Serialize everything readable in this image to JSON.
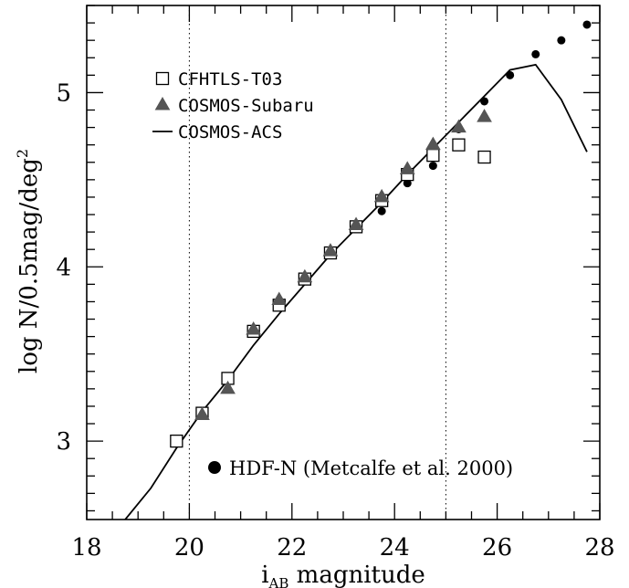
{
  "chart_data": {
    "type": "scatter",
    "xlabel_main": "i",
    "xlabel_sub": "AB",
    "xlabel_rest": " magnitude",
    "ylabel_main": "log N/0.5mag/deg",
    "ylabel_sup": "2",
    "xlim": [
      18,
      28
    ],
    "ylim": [
      2.55,
      5.5
    ],
    "x_ticks": [
      18,
      20,
      22,
      24,
      26,
      28
    ],
    "y_ticks": [
      3,
      4,
      5
    ],
    "vertical_dotted_lines": [
      20,
      25
    ],
    "series": [
      {
        "name": "CFHTLS-T03",
        "marker": "open-square",
        "x": [
          19.75,
          20.25,
          20.75,
          21.25,
          21.75,
          22.25,
          22.75,
          23.25,
          23.75,
          24.25,
          24.75,
          25.25,
          25.75
        ],
        "y": [
          3.0,
          3.16,
          3.36,
          3.63,
          3.78,
          3.93,
          4.08,
          4.23,
          4.38,
          4.53,
          4.64,
          4.7,
          4.63
        ]
      },
      {
        "name": "COSMOS-Subaru",
        "marker": "filled-triangle",
        "x": [
          20.25,
          20.75,
          21.25,
          21.75,
          22.25,
          22.75,
          23.25,
          23.75,
          24.25,
          24.75,
          25.25,
          25.75
        ],
        "y": [
          3.15,
          3.3,
          3.64,
          3.81,
          3.94,
          4.09,
          4.24,
          4.4,
          4.56,
          4.7,
          4.8,
          4.86
        ]
      },
      {
        "name": "COSMOS-ACS",
        "marker": "line",
        "x": [
          18.75,
          19.25,
          19.75,
          20.25,
          20.75,
          21.25,
          21.75,
          22.25,
          22.75,
          23.25,
          23.75,
          24.25,
          24.75,
          25.25,
          25.75,
          26.25,
          26.75,
          27.25,
          27.75
        ],
        "y": [
          2.55,
          2.73,
          2.96,
          3.17,
          3.35,
          3.55,
          3.73,
          3.9,
          4.07,
          4.22,
          4.37,
          4.53,
          4.68,
          4.83,
          4.98,
          5.13,
          5.16,
          4.96,
          4.66
        ]
      },
      {
        "name": "HDF-N (Metcalfe et al. 2000)",
        "marker": "filled-circle",
        "x": [
          23.75,
          24.25,
          24.75,
          25.25,
          25.75,
          26.25,
          26.75,
          27.25,
          27.75
        ],
        "y": [
          4.32,
          4.48,
          4.58,
          4.79,
          4.95,
          5.1,
          5.22,
          5.3,
          5.39
        ]
      }
    ],
    "legend_top": [
      {
        "label": "CFHTLS-T03",
        "marker": "open-square"
      },
      {
        "label": "COSMOS-Subaru",
        "marker": "filled-triangle"
      },
      {
        "label": "COSMOS-ACS",
        "marker": "line"
      }
    ],
    "legend_bottom": {
      "label": "HDF-N (Metcalfe et al. 2000)",
      "marker": "filled-circle"
    },
    "grid": false,
    "legend_placement": "upper-left and lower-right"
  }
}
